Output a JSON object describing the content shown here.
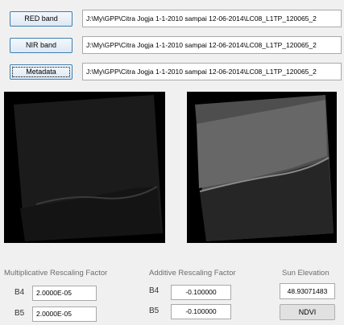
{
  "buttons": {
    "red": "RED band",
    "nir": "NIR band",
    "metadata": "Metadata",
    "ndvi": "NDVI"
  },
  "paths": {
    "red": "J:\\My\\GPP\\Citra Jogja 1-1-2010 sampai 12-06-2014\\LC08_L1TP_120065_2",
    "nir": "J:\\My\\GPP\\Citra Jogja 1-1-2010 sampai 12-06-2014\\LC08_L1TP_120065_2",
    "metadata": "J:\\My\\GPP\\Citra Jogja 1-1-2010 sampai 12-06-2014\\LC08_L1TP_120065_2"
  },
  "labels": {
    "multiplicative": "Multiplicative Rescaling Factor",
    "additive": "Additive Rescaling Factor",
    "sun": "Sun Elevation",
    "b4_mult": "B4",
    "b5_mult": "B5",
    "b4_add": "B4",
    "b5_add": "B5"
  },
  "fields": {
    "b4_mult": "2.0000E-05",
    "b5_mult": "2.0000E-05",
    "b4_add": "-0.100000",
    "b5_add": "-0.100000",
    "sun": "48.93071483"
  }
}
